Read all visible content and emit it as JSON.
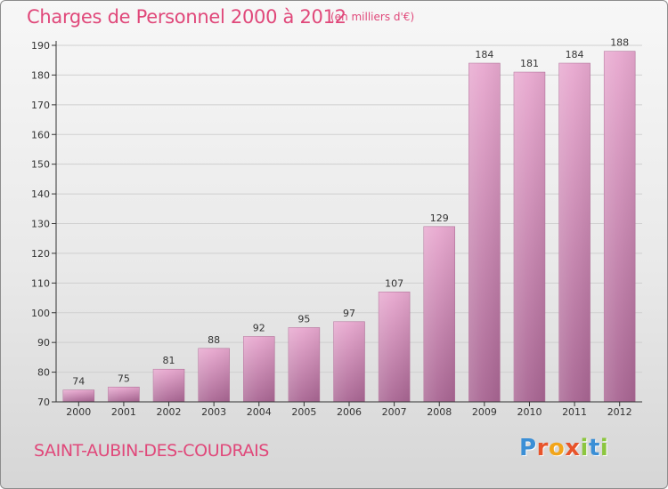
{
  "title": "Charges de Personnel 2000 à 2012",
  "subtitle": "(en milliers d'€)",
  "commune": "SAINT-AUBIN-DES-COUDRAIS",
  "logo": {
    "letters": [
      "P",
      "r",
      "o",
      "x",
      "i",
      "t",
      "i"
    ],
    "colors": [
      "#3b8fd6",
      "#e8542b",
      "#f2a51a",
      "#e8542b",
      "#8cc63f",
      "#3b8fd6",
      "#8cc63f"
    ]
  },
  "colors": {
    "title": "#e0487a",
    "bar_top": "#e8a8cf",
    "bar_bottom": "#a86592",
    "axis": "#333333"
  },
  "chart_data": {
    "type": "bar",
    "categories": [
      "2000",
      "2001",
      "2002",
      "2003",
      "2004",
      "2005",
      "2006",
      "2007",
      "2008",
      "2009",
      "2010",
      "2011",
      "2012"
    ],
    "values": [
      74,
      75,
      81,
      88,
      92,
      95,
      97,
      107,
      129,
      184,
      181,
      184,
      188
    ],
    "ylim": [
      70,
      190
    ],
    "yticks": [
      70,
      80,
      90,
      100,
      110,
      120,
      130,
      140,
      150,
      160,
      170,
      180,
      190
    ],
    "grid": true,
    "legend": "none"
  }
}
